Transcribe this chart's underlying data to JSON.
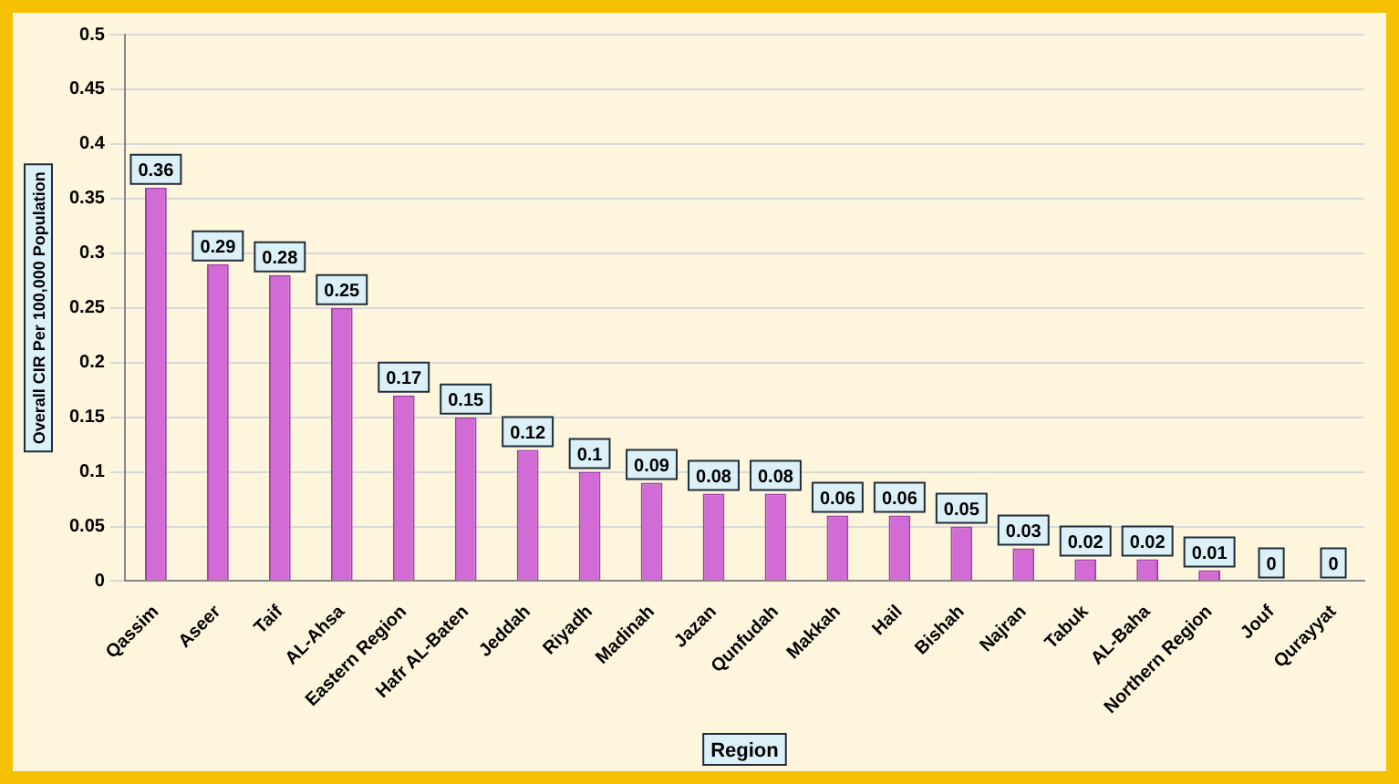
{
  "chart_data": {
    "type": "bar",
    "xlabel": "Region",
    "ylabel": "Overall CIR Per 100,000 Population",
    "categories": [
      "Qassim",
      "Aseer",
      "Taif",
      "AL-Ahsa",
      "Eastern Region",
      "Hafr AL-Baten",
      "Jeddah",
      "Riyadh",
      "Madinah",
      "Jazan",
      "Qunfudah",
      "Makkah",
      "Hail",
      "Bishah",
      "Najran",
      "Tabuk",
      "AL-Baha",
      "Northern Region",
      "Jouf",
      "Qurayyat"
    ],
    "values": [
      0.36,
      0.29,
      0.28,
      0.25,
      0.17,
      0.15,
      0.12,
      0.1,
      0.09,
      0.08,
      0.08,
      0.06,
      0.06,
      0.05,
      0.03,
      0.02,
      0.02,
      0.01,
      0,
      0
    ],
    "color": "#d36bd6",
    "ylim": [
      0,
      0.5
    ],
    "yticks": [
      0,
      0.05,
      0.1,
      0.15,
      0.2,
      0.25,
      0.3,
      0.35,
      0.4,
      0.45,
      0.5
    ],
    "grid": "y",
    "data_labels": true,
    "legend": false
  }
}
